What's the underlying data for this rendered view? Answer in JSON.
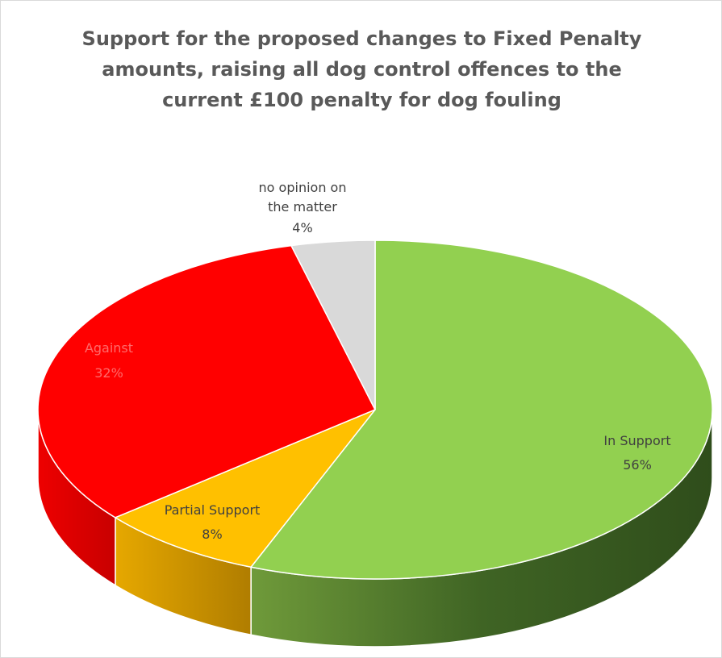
{
  "chart_data": {
    "type": "pie",
    "title": "Support for the proposed changes to Fixed Penalty amounts, raising all dog control offences to the current £100 penalty for dog fouling",
    "slices": [
      {
        "label": "In Support",
        "value": 56,
        "value_label": "56%",
        "color": "#92d050",
        "label_color": "#404040"
      },
      {
        "label": "Partial Support",
        "value": 8,
        "value_label": "8%",
        "color": "#ffc000",
        "label_color": "#404040"
      },
      {
        "label": "Against",
        "value": 32,
        "value_label": "32%",
        "color": "#ff0000",
        "label_color": "#ff6b6b"
      },
      {
        "label": "no opinion on the matter",
        "value": 4,
        "value_label": "4%",
        "color": "#d9d9d9",
        "label_color": "#404040"
      }
    ],
    "legend": "none",
    "style": "3d"
  }
}
